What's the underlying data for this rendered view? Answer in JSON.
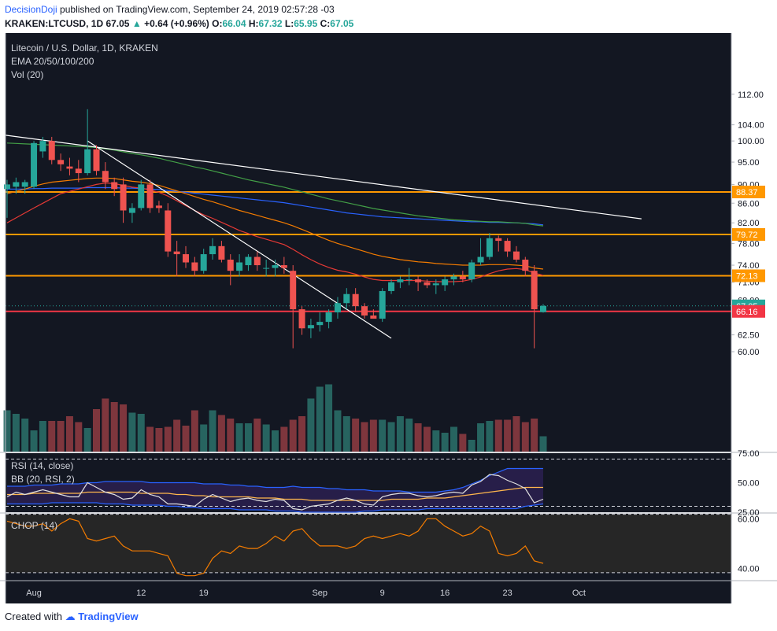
{
  "header": {
    "author": "DecisionDoji",
    "published": "published on TradingView.com, September 24, 2019 02:57:28 -03",
    "symbol": "KRAKEN:LTCUSD, 1D",
    "last": "67.05",
    "change": "+0.64 (+0.96%)",
    "o_label": "O:",
    "o": "66.04",
    "h_label": "H:",
    "h": "67.32",
    "l_label": "L:",
    "l": "65.95",
    "c_label": "C:",
    "c": "67.05"
  },
  "legend": {
    "title": "Litecoin / U.S. Dollar, 1D, KRAKEN",
    "ema": "EMA 20/50/100/200",
    "vol": "Vol (20)",
    "rsi": "RSI (14, close)",
    "bb": "BB (20, RSI, 2)",
    "chop": "CHOP (14)"
  },
  "footer": {
    "created": "Created with",
    "brand": "TradingView"
  },
  "colors": {
    "bull": "#26a69a",
    "bear": "#ef5350",
    "bg": "#131722",
    "axis": "#e0e3eb",
    "ema20": "#e53935",
    "ema50": "#f57c00",
    "ema100": "#43a047",
    "ema200": "#2962ff",
    "level_orange": "#ff9800",
    "level_red": "#f23645",
    "rsi_fill": "#2a1f4e",
    "chop_line": "#f57c00"
  },
  "chart_data": {
    "type": "candlestick",
    "title": "Litecoin / U.S. Dollar, 1D, KRAKEN",
    "x_ticks": [
      "Aug",
      "12",
      "19",
      "Sep",
      "9",
      "16",
      "23",
      "Oct"
    ],
    "y_ticks": [
      "112.00",
      "104.00",
      "100.00",
      "95.00",
      "90.00",
      "86.00",
      "82.00",
      "78.00",
      "74.00",
      "71.00",
      "68.00",
      "62.50",
      "60.00"
    ],
    "price_labels": [
      {
        "label": "88.37",
        "value": 88.37,
        "color": "#ff9800"
      },
      {
        "label": "79.72",
        "value": 79.72,
        "color": "#ff9800"
      },
      {
        "label": "72.13",
        "value": 72.13,
        "color": "#ff9800"
      },
      {
        "label": "67.05",
        "value": 67.05,
        "color": "#26a69a"
      },
      {
        "label": "66.16",
        "value": 66.16,
        "color": "#f23645"
      }
    ],
    "levels": [
      {
        "value": 88.37,
        "color": "#ff9800"
      },
      {
        "value": 79.72,
        "color": "#ff9800"
      },
      {
        "value": 72.13,
        "color": "#ff9800"
      },
      {
        "value": 66.16,
        "color": "#f23645"
      }
    ],
    "candles": [
      {
        "o": 89.0,
        "h": 91.0,
        "l": 83.0,
        "c": 90.0
      },
      {
        "o": 89.5,
        "h": 91.5,
        "l": 88.0,
        "c": 90.5
      },
      {
        "o": 89.5,
        "h": 91.0,
        "l": 88.0,
        "c": 90.5
      },
      {
        "o": 89.5,
        "h": 100.0,
        "l": 89.0,
        "c": 99.5
      },
      {
        "o": 97.5,
        "h": 101.0,
        "l": 96.0,
        "c": 100.0
      },
      {
        "o": 100.0,
        "h": 101.0,
        "l": 94.5,
        "c": 95.5
      },
      {
        "o": 95.5,
        "h": 97.0,
        "l": 93.0,
        "c": 94.5
      },
      {
        "o": 94.0,
        "h": 96.0,
        "l": 92.0,
        "c": 93.5
      },
      {
        "o": 93.5,
        "h": 95.5,
        "l": 90.5,
        "c": 92.5
      },
      {
        "o": 92.5,
        "h": 108.0,
        "l": 92.0,
        "c": 98.0
      },
      {
        "o": 98.0,
        "h": 99.0,
        "l": 92.0,
        "c": 93.0
      },
      {
        "o": 93.0,
        "h": 95.0,
        "l": 89.0,
        "c": 90.5
      },
      {
        "o": 90.5,
        "h": 91.5,
        "l": 87.5,
        "c": 89.0
      },
      {
        "o": 90.0,
        "h": 91.5,
        "l": 82.0,
        "c": 84.5
      },
      {
        "o": 84.0,
        "h": 86.0,
        "l": 82.0,
        "c": 85.0
      },
      {
        "o": 85.0,
        "h": 91.0,
        "l": 84.5,
        "c": 90.0
      },
      {
        "o": 90.0,
        "h": 91.0,
        "l": 84.0,
        "c": 85.0
      },
      {
        "o": 85.5,
        "h": 86.5,
        "l": 84.0,
        "c": 85.0
      },
      {
        "o": 84.5,
        "h": 86.0,
        "l": 75.5,
        "c": 76.5
      },
      {
        "o": 76.5,
        "h": 78.5,
        "l": 72.0,
        "c": 76.0
      },
      {
        "o": 76.0,
        "h": 77.5,
        "l": 73.5,
        "c": 74.5
      },
      {
        "o": 74.5,
        "h": 75.5,
        "l": 72.0,
        "c": 73.0
      },
      {
        "o": 73.0,
        "h": 77.0,
        "l": 72.5,
        "c": 76.0
      },
      {
        "o": 76.0,
        "h": 79.0,
        "l": 75.0,
        "c": 77.5
      },
      {
        "o": 77.5,
        "h": 78.5,
        "l": 74.5,
        "c": 75.0
      },
      {
        "o": 75.0,
        "h": 76.0,
        "l": 70.5,
        "c": 73.0
      },
      {
        "o": 73.0,
        "h": 76.0,
        "l": 72.0,
        "c": 74.5
      },
      {
        "o": 74.0,
        "h": 76.0,
        "l": 73.0,
        "c": 75.5
      },
      {
        "o": 75.5,
        "h": 76.5,
        "l": 73.0,
        "c": 74.0
      },
      {
        "o": 73.5,
        "h": 75.0,
        "l": 72.0,
        "c": 73.5
      },
      {
        "o": 73.5,
        "h": 75.0,
        "l": 72.0,
        "c": 74.0
      },
      {
        "o": 74.0,
        "h": 75.5,
        "l": 72.5,
        "c": 73.5
      },
      {
        "o": 73.0,
        "h": 74.0,
        "l": 60.5,
        "c": 66.5
      },
      {
        "o": 66.5,
        "h": 67.0,
        "l": 62.5,
        "c": 63.5
      },
      {
        "o": 63.5,
        "h": 65.0,
        "l": 62.0,
        "c": 64.0
      },
      {
        "o": 64.0,
        "h": 66.0,
        "l": 63.0,
        "c": 64.5
      },
      {
        "o": 64.5,
        "h": 66.5,
        "l": 63.5,
        "c": 66.0
      },
      {
        "o": 66.0,
        "h": 68.5,
        "l": 65.0,
        "c": 67.5
      },
      {
        "o": 67.5,
        "h": 70.0,
        "l": 66.5,
        "c": 69.0
      },
      {
        "o": 69.0,
        "h": 70.0,
        "l": 66.0,
        "c": 67.0
      },
      {
        "o": 67.0,
        "h": 67.5,
        "l": 65.0,
        "c": 65.5
      },
      {
        "o": 65.5,
        "h": 66.5,
        "l": 65.0,
        "c": 65.0
      },
      {
        "o": 65.0,
        "h": 70.0,
        "l": 64.5,
        "c": 69.5
      },
      {
        "o": 69.5,
        "h": 71.5,
        "l": 69.0,
        "c": 71.0
      },
      {
        "o": 71.0,
        "h": 72.0,
        "l": 70.0,
        "c": 71.5
      },
      {
        "o": 71.5,
        "h": 73.5,
        "l": 70.5,
        "c": 71.5
      },
      {
        "o": 71.5,
        "h": 72.0,
        "l": 69.5,
        "c": 71.0
      },
      {
        "o": 71.0,
        "h": 71.5,
        "l": 70.0,
        "c": 70.5
      },
      {
        "o": 70.5,
        "h": 71.5,
        "l": 69.0,
        "c": 70.8
      },
      {
        "o": 70.5,
        "h": 72.0,
        "l": 69.5,
        "c": 71.5
      },
      {
        "o": 71.5,
        "h": 72.5,
        "l": 70.5,
        "c": 72.0
      },
      {
        "o": 72.0,
        "h": 73.0,
        "l": 71.0,
        "c": 71.5
      },
      {
        "o": 71.5,
        "h": 75.0,
        "l": 71.0,
        "c": 74.5
      },
      {
        "o": 74.5,
        "h": 79.0,
        "l": 74.0,
        "c": 75.5
      },
      {
        "o": 75.5,
        "h": 80.0,
        "l": 75.0,
        "c": 79.0
      },
      {
        "o": 79.0,
        "h": 79.5,
        "l": 76.5,
        "c": 78.5
      },
      {
        "o": 78.5,
        "h": 79.0,
        "l": 75.5,
        "c": 76.5
      },
      {
        "o": 76.5,
        "h": 77.5,
        "l": 74.5,
        "c": 75.0
      },
      {
        "o": 75.0,
        "h": 75.5,
        "l": 72.0,
        "c": 73.0
      },
      {
        "o": 73.0,
        "h": 74.0,
        "l": 60.5,
        "c": 66.5
      },
      {
        "o": 66.04,
        "h": 67.32,
        "l": 65.95,
        "c": 67.05
      }
    ],
    "volume": [
      35,
      32,
      28,
      18,
      26,
      26,
      26,
      30,
      25,
      20,
      36,
      45,
      42,
      40,
      33,
      32,
      21,
      20,
      21,
      27,
      22,
      35,
      23,
      35,
      31,
      28,
      24,
      24,
      28,
      23,
      18,
      21,
      27,
      30,
      45,
      55,
      57,
      35,
      30,
      28,
      25,
      27,
      27,
      25,
      30,
      28,
      24,
      21,
      18,
      16,
      21,
      15,
      10,
      24,
      26,
      27,
      27,
      30,
      25,
      28,
      13
    ],
    "ema20": [
      82,
      83,
      84,
      85,
      86,
      87,
      88,
      88.5,
      89,
      89.5,
      90,
      90.3,
      90.2,
      89.8,
      89.4,
      89.2,
      88.8,
      88.3,
      87.5,
      86.5,
      85.5,
      84.5,
      83.6,
      82.9,
      82.1,
      81.3,
      80.5,
      79.9,
      79.3,
      78.8,
      78.3,
      77.8,
      76.9,
      75.9,
      75.0,
      74.2,
      73.6,
      73.1,
      72.8,
      72.4,
      71.9,
      71.5,
      71.3,
      71.3,
      71.3,
      71.3,
      71.3,
      71.2,
      71.1,
      71.1,
      71.1,
      71.2,
      71.5,
      71.9,
      72.5,
      73.0,
      73.3,
      73.4,
      73.2,
      72.6,
      72.2
    ],
    "ema50": [
      88,
      88.5,
      89,
      89.6,
      90.1,
      90.5,
      90.7,
      90.9,
      91.1,
      91.3,
      91.4,
      91.4,
      91.3,
      91.0,
      90.7,
      90.5,
      90.2,
      89.8,
      89.2,
      88.6,
      88.0,
      87.4,
      86.8,
      86.3,
      85.7,
      85.1,
      84.5,
      84.0,
      83.5,
      83.0,
      82.5,
      82.0,
      81.4,
      80.7,
      80.0,
      79.3,
      78.6,
      78.0,
      77.5,
      77.0,
      76.5,
      76.0,
      75.6,
      75.3,
      75.0,
      74.8,
      74.6,
      74.5,
      74.3,
      74.2,
      74.1,
      74.0,
      74.0,
      74.0,
      74.1,
      74.1,
      74.1,
      74.0,
      73.9,
      73.5,
      73.3
    ],
    "ema100": [
      99.5,
      99.4,
      99.3,
      99.2,
      99.1,
      99.0,
      98.9,
      98.8,
      98.7,
      98.6,
      98.4,
      98.1,
      97.8,
      97.4,
      97.0,
      96.7,
      96.3,
      95.9,
      95.4,
      94.9,
      94.4,
      93.9,
      93.5,
      93.0,
      92.5,
      92.0,
      91.5,
      91.0,
      90.6,
      90.2,
      89.8,
      89.4,
      88.9,
      88.4,
      87.9,
      87.4,
      86.9,
      86.5,
      86.1,
      85.7,
      85.3,
      84.9,
      84.6,
      84.3,
      84.0,
      83.7,
      83.4,
      83.2,
      83.0,
      82.8,
      82.6,
      82.5,
      82.4,
      82.3,
      82.2,
      82.2,
      82.1,
      82.0,
      81.9,
      81.6,
      81.4
    ],
    "ema200": [
      89,
      89,
      89,
      89.1,
      89.1,
      89.2,
      89.2,
      89.2,
      89.2,
      89.3,
      89.3,
      89.3,
      89.3,
      89.2,
      89.2,
      89.1,
      89.0,
      88.9,
      88.7,
      88.5,
      88.3,
      88.1,
      87.9,
      87.7,
      87.5,
      87.3,
      87.1,
      86.9,
      86.7,
      86.5,
      86.3,
      86.1,
      85.8,
      85.5,
      85.2,
      84.9,
      84.6,
      84.3,
      84.0,
      83.8,
      83.6,
      83.4,
      83.2,
      83.1,
      83.0,
      82.9,
      82.8,
      82.7,
      82.6,
      82.5,
      82.4,
      82.3,
      82.2,
      82.2,
      82.1,
      82.1,
      82.0,
      82.0,
      81.9,
      81.8,
      81.6
    ],
    "trendlines": [
      {
        "from": {
          "i": -0.5,
          "v": 101.5
        },
        "to": {
          "i": 71,
          "v": 82.8
        },
        "color": "#ffffff"
      },
      {
        "from": {
          "i": 9,
          "v": 100.0
        },
        "to": {
          "i": 43,
          "v": 62.0
        },
        "color": "#ffffff"
      }
    ],
    "rsi": {
      "range": [
        25,
        75
      ],
      "levels": [
        70,
        30
      ],
      "ticks": [
        "75.00",
        "50.00",
        "25.00"
      ],
      "values": [
        38,
        42,
        40,
        42,
        44,
        42,
        40,
        38,
        38,
        50,
        46,
        42,
        40,
        36,
        37,
        44,
        40,
        38,
        32,
        32,
        31,
        30,
        36,
        40,
        37,
        34,
        36,
        37,
        35,
        34,
        36,
        35,
        28,
        27,
        30,
        31,
        32,
        35,
        37,
        35,
        32,
        31,
        38,
        40,
        41,
        41,
        39,
        38,
        39,
        41,
        42,
        41,
        48,
        51,
        57,
        56,
        52,
        49,
        45,
        33,
        36
      ],
      "bb_upper": [
        47,
        47,
        47,
        48,
        48,
        48,
        49,
        49,
        49,
        50,
        50,
        51,
        51,
        51,
        51,
        51,
        50,
        50,
        50,
        50,
        50,
        50,
        49,
        49,
        49,
        48,
        48,
        47,
        47,
        46,
        46,
        46,
        47,
        46,
        46,
        46,
        45,
        45,
        44,
        44,
        44,
        43,
        43,
        43,
        43,
        42,
        42,
        42,
        42,
        43,
        44,
        46,
        49,
        52,
        56,
        59,
        62,
        62,
        62,
        62,
        62
      ],
      "bb_basis": [
        40,
        40,
        40,
        41,
        41,
        41,
        41,
        41,
        41,
        42,
        42,
        42,
        42,
        42,
        42,
        41,
        41,
        41,
        41,
        40,
        40,
        39,
        39,
        38,
        38,
        38,
        38,
        38,
        37,
        37,
        37,
        36,
        36,
        36,
        35,
        35,
        35,
        35,
        35,
        35,
        35,
        35,
        35,
        36,
        36,
        36,
        36,
        37,
        37,
        37,
        38,
        39,
        40,
        41,
        42,
        43,
        44,
        45,
        46,
        46,
        46
      ],
      "bb_lower": [
        32,
        32,
        32,
        32,
        32,
        33,
        33,
        33,
        33,
        33,
        33,
        32,
        32,
        32,
        31,
        31,
        31,
        31,
        30,
        30,
        29,
        29,
        28,
        28,
        28,
        28,
        27,
        27,
        27,
        27,
        26,
        26,
        26,
        25,
        25,
        25,
        25,
        25,
        25,
        25,
        26,
        26,
        27,
        27,
        27,
        27,
        27,
        28,
        28,
        28,
        28,
        28,
        28,
        28,
        28,
        28,
        28,
        28,
        30,
        31,
        32
      ]
    },
    "chop": {
      "range": [
        35,
        62
      ],
      "levels": [
        61.8,
        38.2
      ],
      "ticks": [
        "60.00",
        "40.00"
      ],
      "values": [
        59,
        58,
        57,
        57,
        58,
        55,
        58,
        60,
        59,
        52,
        51,
        52,
        53,
        49,
        47,
        47,
        47,
        46,
        45,
        38,
        37,
        37,
        38,
        44,
        47,
        46,
        49,
        48,
        48,
        50,
        53,
        51,
        55,
        56,
        52,
        49,
        49,
        49,
        48,
        49,
        52,
        53,
        52,
        53,
        54,
        53,
        55,
        60,
        60,
        57,
        55,
        53,
        54,
        57,
        55,
        46,
        45,
        46,
        49,
        43,
        42
      ]
    }
  }
}
